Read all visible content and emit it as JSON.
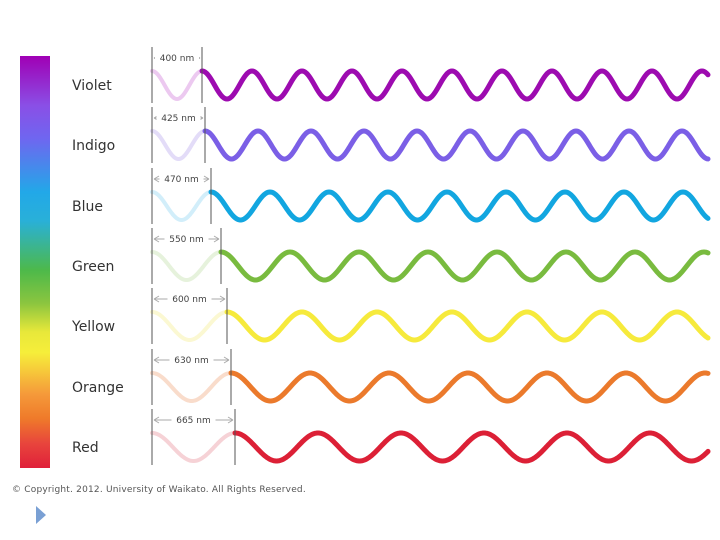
{
  "waves": [
    {
      "name": "Violet",
      "wavelength": "400 nm",
      "color": "#9d0bb0",
      "light": "#ecc9f0"
    },
    {
      "name": "Indigo",
      "wavelength": "425 nm",
      "color": "#7b5fe6",
      "light": "#e3dcf8"
    },
    {
      "name": "Blue",
      "wavelength": "470 nm",
      "color": "#12a6e0",
      "light": "#d2eefa"
    },
    {
      "name": "Green",
      "wavelength": "550 nm",
      "color": "#79bb3f",
      "light": "#e6f2dc"
    },
    {
      "name": "Yellow",
      "wavelength": "600 nm",
      "color": "#f6ea3c",
      "light": "#fbf8d2"
    },
    {
      "name": "Orange",
      "wavelength": "630 nm",
      "color": "#eb7a2c",
      "light": "#f9dccb"
    },
    {
      "name": "Red",
      "wavelength": "665 nm",
      "color": "#dc2036",
      "light": "#f6d2d6"
    }
  ],
  "copyright": "© Copyright. 2012. University of Waikato. All Rights Reserved.",
  "icons": {
    "next": "play-arrow-icon"
  }
}
